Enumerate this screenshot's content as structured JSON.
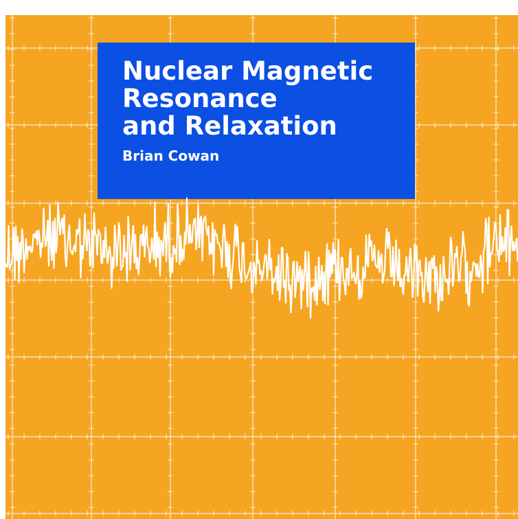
{
  "cover": {
    "title_lines": [
      "Nuclear Magnetic",
      "Resonance",
      "and Relaxation"
    ],
    "author": "Brian Cowan"
  }
}
